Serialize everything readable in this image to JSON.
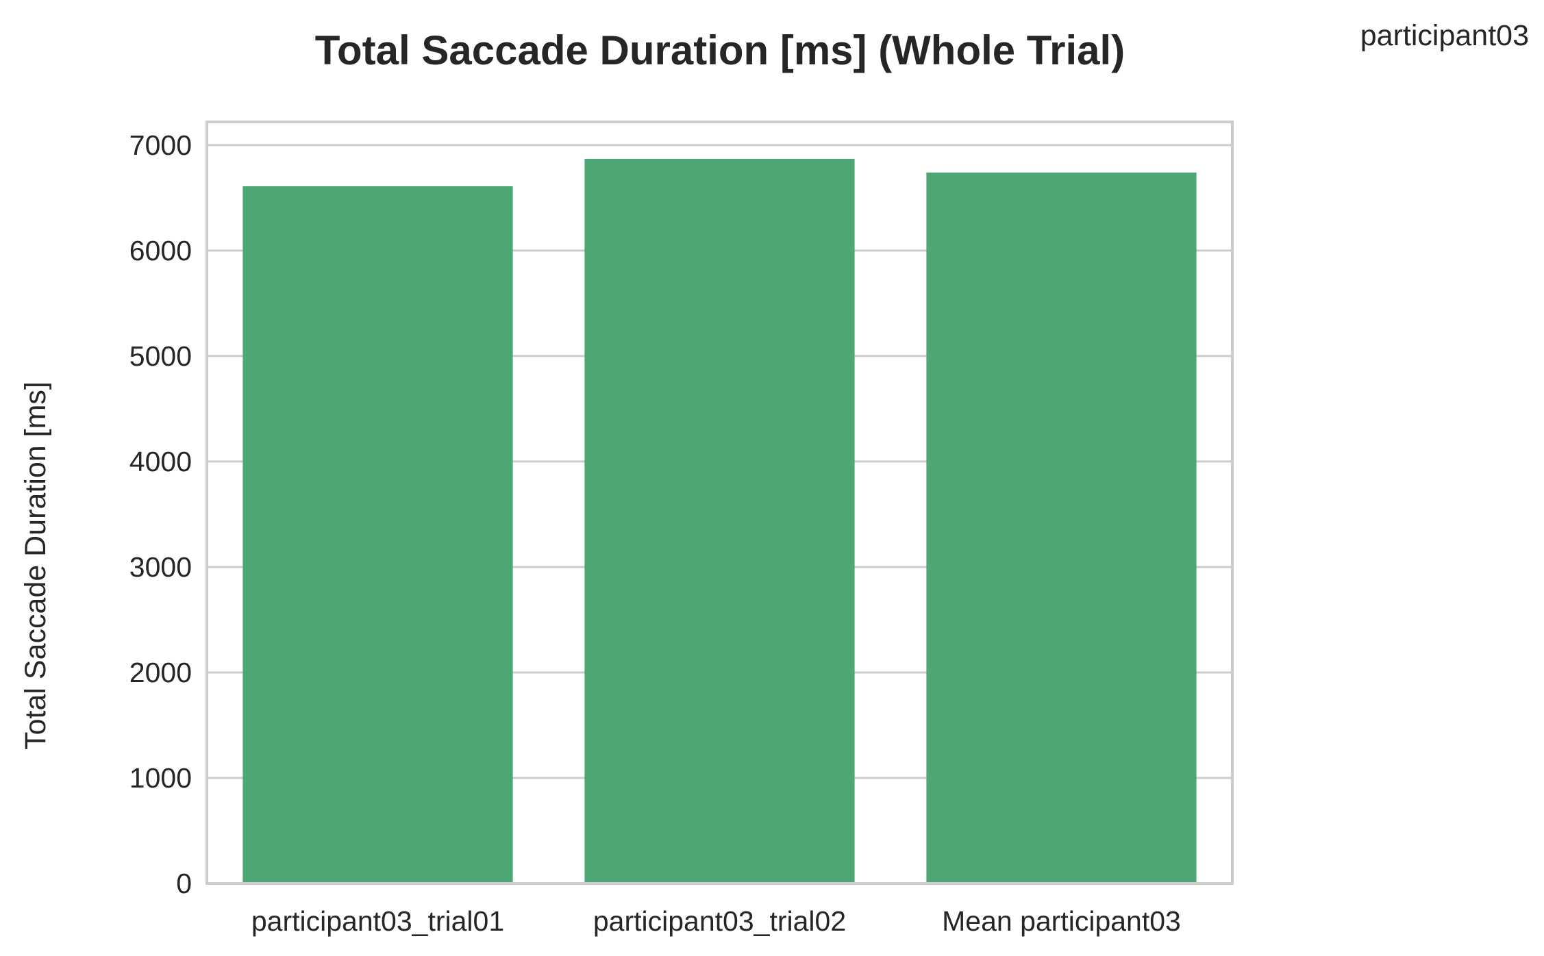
{
  "chart_data": {
    "type": "bar",
    "title": "Total Saccade Duration [ms] (Whole Trial)",
    "corner_label": "participant03",
    "xlabel": "",
    "ylabel": "Total Saccade Duration [ms]",
    "categories": [
      "participant03_trial01",
      "participant03_trial02",
      "Mean participant03"
    ],
    "values": [
      6610,
      6870,
      6740
    ],
    "ylim": [
      0,
      7220
    ],
    "yticks": [
      0,
      1000,
      2000,
      3000,
      4000,
      5000,
      6000,
      7000
    ],
    "grid": true,
    "bar_color": "#4ea674",
    "grid_color": "#cccccc",
    "text_color": "#262626"
  }
}
